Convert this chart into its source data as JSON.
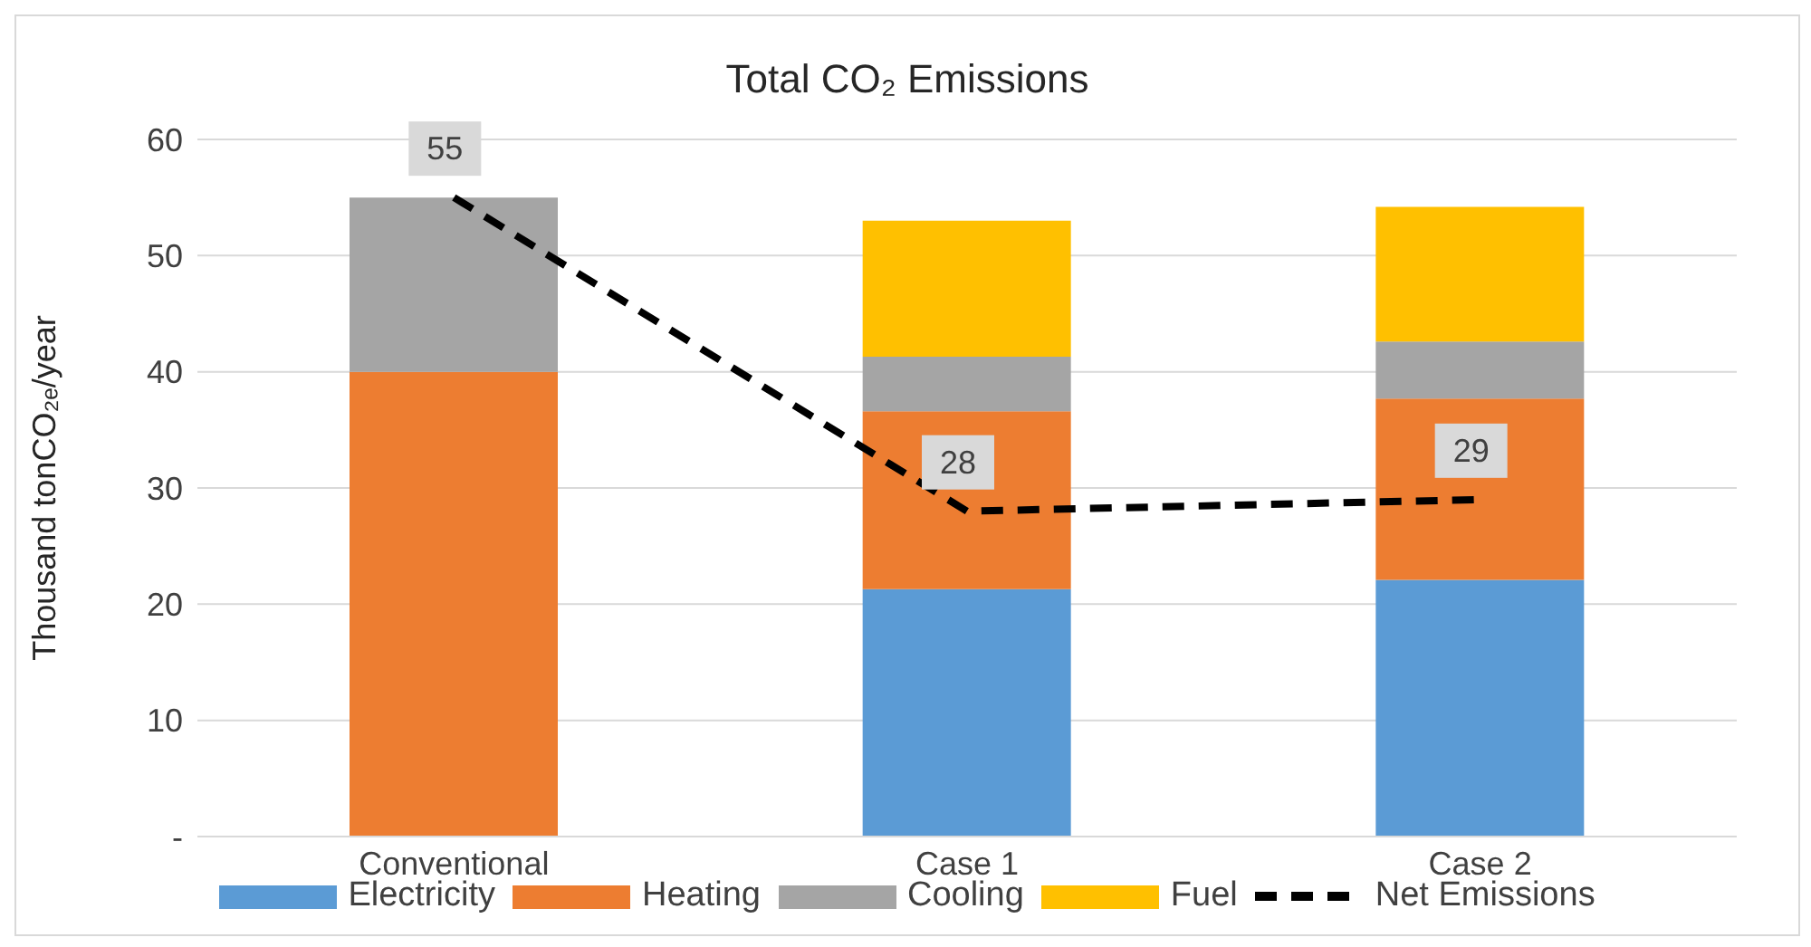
{
  "chart_data": {
    "type": "bar",
    "title": "Total CO₂ Emissions",
    "ylabel": "Thousand tonCO₂ₑ/year",
    "categories": [
      "Conventional",
      "Case 1",
      "Case 2"
    ],
    "stacked": true,
    "series": [
      {
        "name": "Electricity",
        "color": "#5b9bd5",
        "values": [
          0,
          21.3,
          22.1
        ]
      },
      {
        "name": "Heating",
        "color": "#ed7d31",
        "values": [
          40,
          15.3,
          15.6
        ]
      },
      {
        "name": "Cooling",
        "color": "#a5a5a5",
        "values": [
          15,
          4.7,
          4.9
        ]
      },
      {
        "name": "Fuel",
        "color": "#ffc000",
        "values": [
          0,
          11.7,
          11.6
        ]
      },
      {
        "name": "Net Emissions",
        "type": "line",
        "color": "#000000",
        "line_style": "dashed",
        "marker": "none",
        "values": [
          55,
          28,
          29
        ],
        "value_labels": [
          "55",
          "28",
          "29"
        ]
      }
    ],
    "ylim": [
      0,
      60
    ],
    "yticks": [
      {
        "value": 0,
        "label": "-"
      },
      10,
      20,
      30,
      40,
      50,
      60
    ],
    "grid": "y",
    "legend": "bottom"
  }
}
